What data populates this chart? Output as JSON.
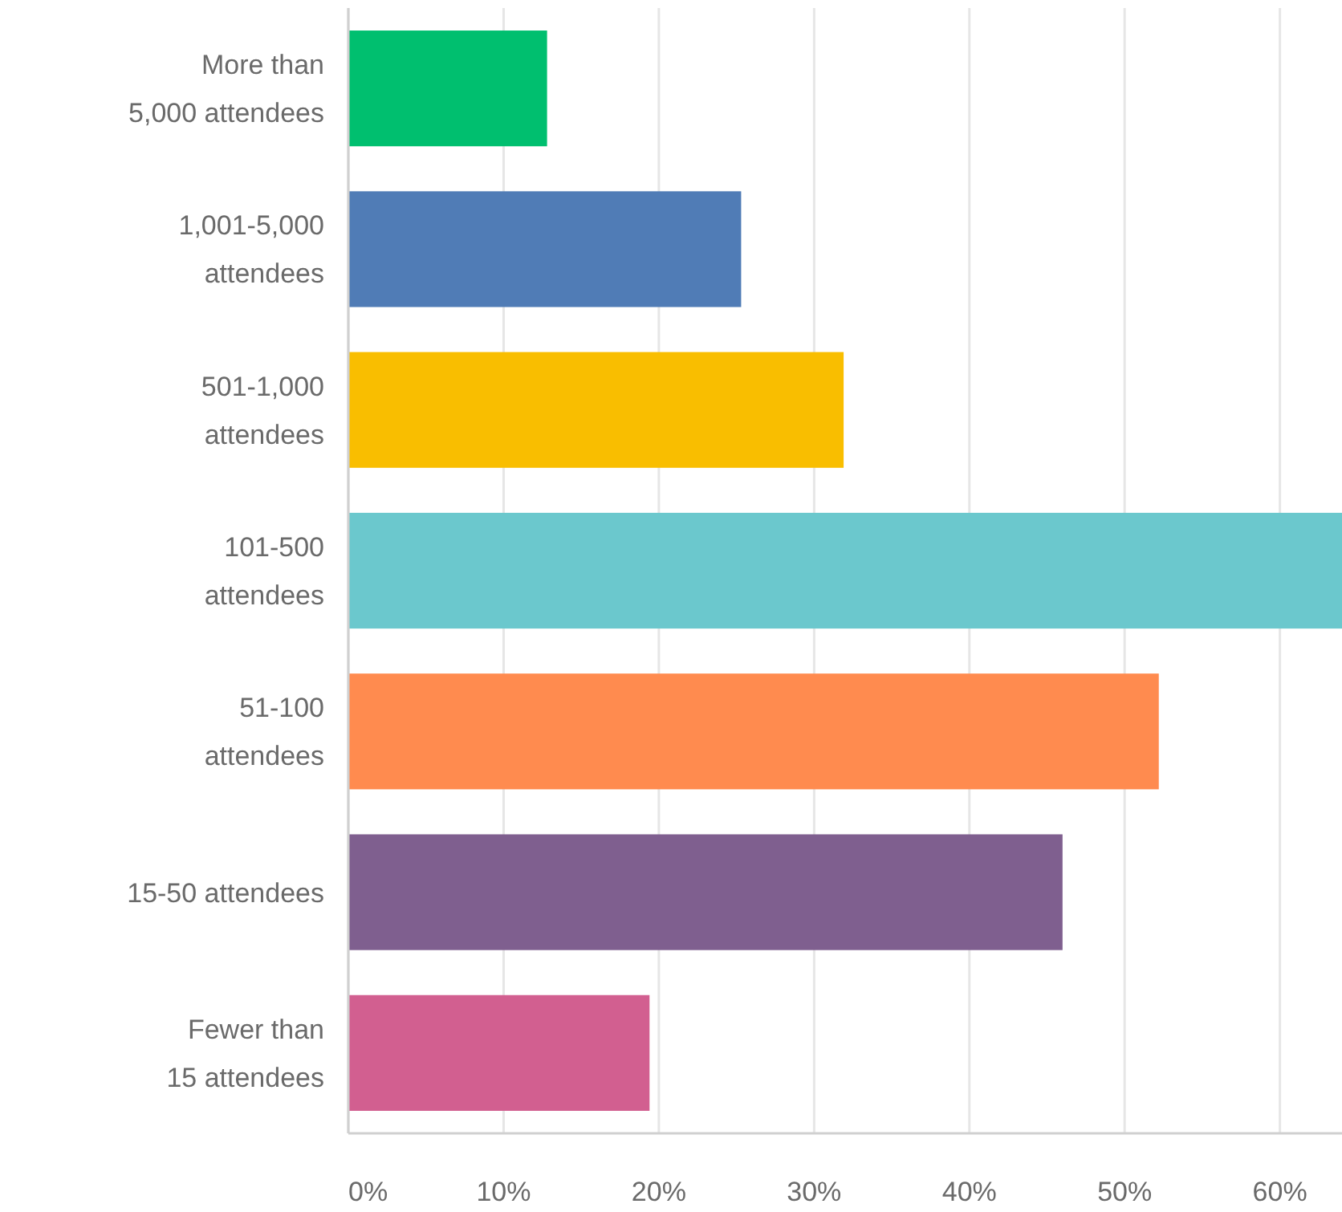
{
  "chart_data": {
    "type": "bar",
    "orientation": "horizontal",
    "categories": [
      "More than 5,000 attendees",
      "1,001-5,000 attendees",
      "501-1,000 attendees",
      "101-500 attendees",
      "51-100 attendees",
      "15-50 attendees",
      "Fewer than 15 attendees"
    ],
    "values": [
      12.8,
      25.3,
      31.9,
      64,
      52.2,
      46.0,
      19.4
    ],
    "colors": [
      "#00bf6f",
      "#507cb6",
      "#f9be00",
      "#6bc8cd",
      "#ff8b4f",
      "#7f5f8f",
      "#d25f90"
    ],
    "xlim": [
      0,
      64
    ],
    "xticks": [
      {
        "value": 0,
        "label": "0%"
      },
      {
        "value": 10,
        "label": "10%"
      },
      {
        "value": 20,
        "label": "20%"
      },
      {
        "value": 30,
        "label": "30%"
      },
      {
        "value": 40,
        "label": "40%"
      },
      {
        "value": 50,
        "label": "50%"
      },
      {
        "value": 60,
        "label": "60%"
      }
    ],
    "grid": "x"
  }
}
